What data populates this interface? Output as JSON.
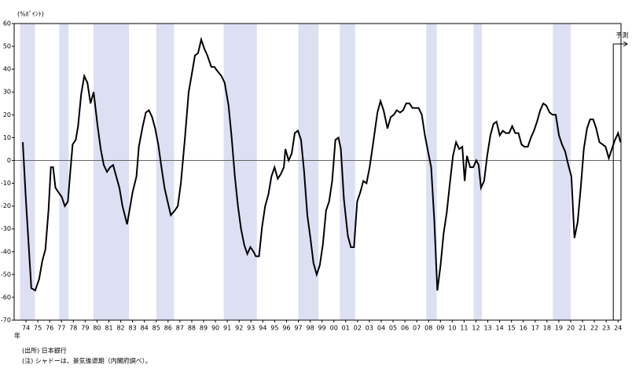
{
  "chart_data": {
    "type": "line",
    "y_label": "(%ﾎﾟｲﾝﾄ)",
    "x_unit": "年",
    "forecast_label": "予測",
    "forecast_x": 2024.1,
    "source": "(出所) 日本銀行",
    "note": "(注) シャドーは、景気後退期（内閣府調べ）。",
    "color": "#000000",
    "shade_color": "#dde0f2",
    "recessions": [
      [
        1974.0,
        1975.25
      ],
      [
        1977.3,
        1978.1
      ],
      [
        1980.2,
        1983.2
      ],
      [
        1985.5,
        1987.0
      ],
      [
        1991.2,
        1994.0
      ],
      [
        1997.5,
        1999.2
      ],
      [
        2001.0,
        2002.3
      ],
      [
        2008.3,
        2009.2
      ],
      [
        2012.3,
        2013.0
      ],
      [
        2019.0,
        2020.5
      ]
    ],
    "xlim": [
      1973.5,
      2024.75
    ],
    "ylim": [
      -70,
      60
    ],
    "yticks": [
      -70,
      -60,
      -50,
      -40,
      -30,
      -20,
      -10,
      0,
      10,
      20,
      30,
      40,
      50,
      60
    ],
    "xticks": [
      {
        "value": 1974.5,
        "label": "74"
      },
      {
        "value": 1975.5,
        "label": "75"
      },
      {
        "value": 1976.5,
        "label": "76"
      },
      {
        "value": 1977.5,
        "label": "77"
      },
      {
        "value": 1978.5,
        "label": "78"
      },
      {
        "value": 1979.5,
        "label": "79"
      },
      {
        "value": 1980.5,
        "label": "80"
      },
      {
        "value": 1981.5,
        "label": "81"
      },
      {
        "value": 1982.5,
        "label": "82"
      },
      {
        "value": 1983.5,
        "label": "83"
      },
      {
        "value": 1984.5,
        "label": "84"
      },
      {
        "value": 1985.5,
        "label": "85"
      },
      {
        "value": 1986.5,
        "label": "86"
      },
      {
        "value": 1987.5,
        "label": "87"
      },
      {
        "value": 1988.5,
        "label": "88"
      },
      {
        "value": 1989.5,
        "label": "89"
      },
      {
        "value": 1990.5,
        "label": "90"
      },
      {
        "value": 1991.5,
        "label": "91"
      },
      {
        "value": 1992.5,
        "label": "92"
      },
      {
        "value": 1993.5,
        "label": "93"
      },
      {
        "value": 1994.5,
        "label": "94"
      },
      {
        "value": 1995.5,
        "label": "95"
      },
      {
        "value": 1996.5,
        "label": "96"
      },
      {
        "value": 1997.5,
        "label": "97"
      },
      {
        "value": 1998.5,
        "label": "98"
      },
      {
        "value": 1999.5,
        "label": "99"
      },
      {
        "value": 2000.5,
        "label": "00"
      },
      {
        "value": 2001.5,
        "label": "01"
      },
      {
        "value": 2002.5,
        "label": "02"
      },
      {
        "value": 2003.5,
        "label": "03"
      },
      {
        "value": 2004.5,
        "label": "04"
      },
      {
        "value": 2005.5,
        "label": "05"
      },
      {
        "value": 2006.5,
        "label": "06"
      },
      {
        "value": 2007.5,
        "label": "07"
      },
      {
        "value": 2008.5,
        "label": "08"
      },
      {
        "value": 2009.5,
        "label": "09"
      },
      {
        "value": 2010.5,
        "label": "10"
      },
      {
        "value": 2011.5,
        "label": "11"
      },
      {
        "value": 2012.5,
        "label": "12"
      },
      {
        "value": 2013.5,
        "label": "13"
      },
      {
        "value": 2014.5,
        "label": "14"
      },
      {
        "value": 2015.5,
        "label": "15"
      },
      {
        "value": 2016.5,
        "label": "16"
      },
      {
        "value": 2017.5,
        "label": "17"
      },
      {
        "value": 2018.5,
        "label": "18"
      },
      {
        "value": 2019.5,
        "label": "19"
      },
      {
        "value": 2020.5,
        "label": "20"
      },
      {
        "value": 2021.5,
        "label": "21"
      },
      {
        "value": 2022.5,
        "label": "22"
      },
      {
        "value": 2023.5,
        "label": "23"
      },
      {
        "value": 2024.5,
        "label": "24"
      }
    ],
    "x": [
      1974.23,
      1974.49,
      1974.95,
      1975.28,
      1975.61,
      1975.88,
      1976.14,
      1976.4,
      1976.6,
      1976.79,
      1976.99,
      1977.25,
      1977.52,
      1977.78,
      1978.04,
      1978.24,
      1978.44,
      1978.7,
      1978.9,
      1979.16,
      1979.42,
      1979.69,
      1979.95,
      1980.21,
      1980.55,
      1980.81,
      1981.07,
      1981.34,
      1981.6,
      1981.86,
      1982.12,
      1982.39,
      1982.65,
      1983.04,
      1983.5,
      1983.83,
      1984.03,
      1984.36,
      1984.62,
      1984.88,
      1985.15,
      1985.41,
      1985.67,
      1985.94,
      1986.2,
      1986.46,
      1986.73,
      1987.06,
      1987.32,
      1987.58,
      1987.91,
      1988.24,
      1988.51,
      1988.77,
      1989.03,
      1989.3,
      1989.56,
      1989.82,
      1990.15,
      1990.41,
      1990.69,
      1991.01,
      1991.28,
      1991.61,
      1991.87,
      1992.14,
      1992.4,
      1992.66,
      1992.93,
      1993.19,
      1993.45,
      1993.72,
      1993.91,
      1994.18,
      1994.44,
      1994.7,
      1994.97,
      1995.23,
      1995.49,
      1995.76,
      1996.02,
      1996.28,
      1996.41,
      1996.68,
      1996.94,
      1997.2,
      1997.47,
      1997.73,
      1997.99,
      1998.26,
      1998.52,
      1998.78,
      1999.05,
      1999.31,
      1999.57,
      1999.84,
      2000.1,
      2000.36,
      2000.63,
      2000.89,
      2001.09,
      2001.35,
      2001.68,
      2001.94,
      2002.2,
      2002.47,
      2002.73,
      2002.99,
      2003.26,
      2003.52,
      2003.72,
      2003.91,
      2004.18,
      2004.44,
      2004.7,
      2005.03,
      2005.3,
      2005.56,
      2005.82,
      2006.09,
      2006.35,
      2006.61,
      2006.88,
      2007.14,
      2007.4,
      2007.66,
      2007.93,
      2008.19,
      2008.45,
      2008.72,
      2008.98,
      2009.24,
      2009.51,
      2009.77,
      2010.03,
      2010.3,
      2010.56,
      2010.82,
      2011.09,
      2011.35,
      2011.55,
      2011.74,
      2012.01,
      2012.27,
      2012.53,
      2012.73,
      2012.93,
      2013.19,
      2013.45,
      2013.72,
      2013.98,
      2014.24,
      2014.51,
      2014.77,
      2015.03,
      2015.3,
      2015.56,
      2015.82,
      2016.09,
      2016.35,
      2016.61,
      2016.88,
      2017.14,
      2017.4,
      2017.66,
      2017.93,
      2018.19,
      2018.45,
      2018.72,
      2018.98,
      2019.24,
      2019.51,
      2019.77,
      2020.03,
      2020.3,
      2020.56,
      2020.82,
      2021.09,
      2021.35,
      2021.61,
      2021.88,
      2022.14,
      2022.4,
      2022.66,
      2022.93,
      2023.19,
      2023.45,
      2023.72,
      2023.98,
      2024.24,
      2024.51,
      2024.7
    ],
    "values": [
      8,
      -17,
      -56,
      -57,
      -52,
      -44,
      -39,
      -22,
      -3,
      -3,
      -12,
      -14,
      -16,
      -20,
      -18,
      -5,
      7,
      9,
      15,
      29,
      37,
      34,
      25,
      30,
      15,
      5,
      -2,
      -5,
      -3,
      -2,
      -7,
      -12,
      -20,
      -28,
      -14,
      -7,
      6,
      15,
      21,
      22,
      19,
      14,
      7,
      -3,
      -12,
      -18,
      -24,
      -22,
      -20,
      -10,
      9,
      30,
      38,
      46,
      47,
      53,
      49,
      46,
      41,
      41,
      39,
      37,
      34,
      24,
      10,
      -7,
      -20,
      -30,
      -37,
      -41,
      -38,
      -40,
      -42,
      -42,
      -29,
      -20,
      -15,
      -7,
      -3,
      -8,
      -6,
      -3,
      5,
      0,
      3,
      12,
      13,
      9,
      -5,
      -24,
      -34,
      -45,
      -50,
      -46,
      -37,
      -22,
      -18,
      -9,
      9,
      10,
      5,
      -17,
      -33,
      -38,
      -38,
      -18,
      -14,
      -9,
      -10,
      -3,
      4,
      11,
      21,
      26,
      22,
      14,
      19,
      20,
      22,
      21,
      22,
      25,
      25,
      23,
      23,
      23,
      20,
      11,
      4,
      -3,
      -26,
      -57,
      -46,
      -32,
      -23,
      -10,
      2,
      8,
      5,
      6,
      -9,
      2,
      -3,
      -3,
      0,
      -2,
      -12,
      -9,
      2,
      11,
      16,
      17,
      11,
      13,
      12,
      12,
      15,
      12,
      12,
      7,
      6,
      6,
      10,
      13,
      17,
      22,
      25,
      24,
      21,
      20,
      20,
      11,
      7,
      4,
      -2,
      -7,
      -34,
      -27,
      -12,
      5,
      14,
      18,
      18,
      14,
      8,
      7,
      6,
      1,
      5,
      9,
      12,
      8
    ]
  }
}
